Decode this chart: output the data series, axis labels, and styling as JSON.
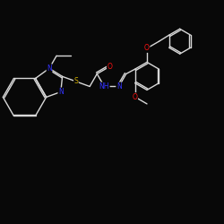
{
  "background_color": "#080808",
  "bond_color": "#d8d8d8",
  "atom_colors": {
    "N": "#3333ff",
    "O": "#ff1111",
    "S": "#ccaa00",
    "C": "#d8d8d8",
    "H": "#d8d8d8"
  },
  "bond_width": 1.0,
  "font_size": 5.5,
  "figsize": [
    2.5,
    2.5
  ],
  "dpi": 100
}
